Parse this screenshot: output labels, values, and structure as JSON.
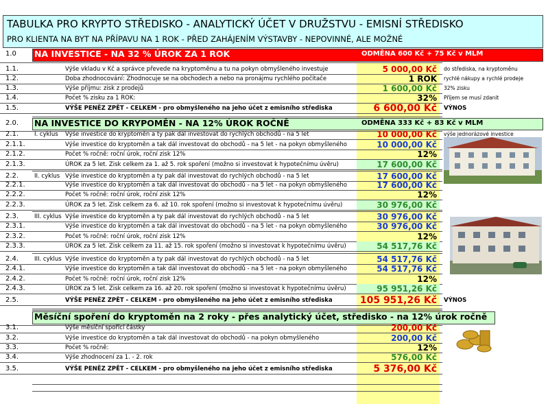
{
  "header": {
    "title": "TABULKA PRO KRYPTO STŘEDISKO - ANALYTICKÝ ÚČET V DRUŽSTVU - EMISNÍ STŘEDISKO",
    "subtitle": "PRO KLIENTA NA BYT NA PŘÍPAVU NA 1 ROK - PŘED ZAHÁJENÍM VÝSTAVBY - NEPOVINNÉ, ALE MOŽNÉ"
  },
  "sections": [
    {
      "number": "1.0",
      "heading": "NA INVESTICE - NA 32 % ÚROK ZA 1 ROK",
      "reward": "ODMĚNA 600 Kč + 75 Kč v MLM",
      "rows": [
        {
          "number": "1.1.",
          "label": "Výše vkladu v Kč a správce převede na kryptoměnu a tu na pokyn obmyšleného investuje",
          "value": "5 000,00 Kč",
          "note": "do střediska, na kryptoměnu"
        },
        {
          "number": "1.2.",
          "label": "Doba zhodnocování: Zhodnocuje se na obchodech a nebo na pronájmu rychlého počítače",
          "value": "1 ROK",
          "note": "rychlé nákupy a rychlé prodeje"
        },
        {
          "number": "1.3.",
          "label": "Výše příjmu: zisk z prodejů",
          "value": "1 600,00 Kč",
          "note": "32% zisku"
        },
        {
          "number": "1.4.",
          "label": "Počet % zisku za 1 ROK:",
          "value": "32%",
          "note": "Příjem se musí zdanit"
        },
        {
          "number": "1.5.",
          "label": "VÝŠE PENĚZ ZPĚT - CELKEM  - pro obmyšleného na jeho účet z emisního střediska",
          "value": "6 600,00 Kč",
          "note": "VÝNOS"
        }
      ]
    },
    {
      "number": "2.0.",
      "heading": "NA INVESTICE DO KRYPOMĚN - NA 12% ÚROK ROČNĚ",
      "reward": "ODMĚNA 333 Kč + 83 Kč v MLM",
      "rows": [
        {
          "number": "2.1.",
          "cycle": "I. cyklus",
          "label": "Výše investice do kryptoměn a ty pak dál investovat do rychlých obchodů - na 5 let",
          "value": "10 000,00 Kč",
          "note": "výše jednorázové investice"
        },
        {
          "number": "2.1.1.",
          "label": "Výše investice do kryptoměn a tak dál investovat do obchodů - na 5 let - na pokyn obmyšleného",
          "value": "10 000,00 Kč"
        },
        {
          "number": "2.1.2.",
          "label": "Počet % ročně: roční úrok, roční zisk  12%",
          "value": "12%"
        },
        {
          "number": "2.1.3.",
          "label": "ÚROK za 5 let. Zisk celkem za 1. až 5. rok spoření (možno si investovat k hypotečnímu úvěru)",
          "value": "17 600,00 Kč"
        },
        {
          "number": "2.2.",
          "cycle": "II. cyklus",
          "label": "Výše investice do kryptoměn a ty pak dál investovat do rychlých obchodů - na 5 let",
          "value": "17 600,00 Kč"
        },
        {
          "number": "2.2.1.",
          "label": "Výše investice do kryptoměn a tak dál investovat do obchodů - na 5 let - na pokyn obmyšleného",
          "value": "17 600,00 Kč"
        },
        {
          "number": "2.2.2.",
          "label": "Počet % ročně: roční úrok, roční zisk  12%",
          "value": "12%"
        },
        {
          "number": "2.2.3.",
          "label": "ÚROK za 5 let. Zisk celkem za 6. až 10. rok spoření (možno si investovat k hypotečnímu úvěru)",
          "value": "30 976,00 Kč"
        },
        {
          "number": "2.3.",
          "cycle": "III. cyklus",
          "label": "Výše investice do kryptoměn a ty pak dál investovat do rychlých obchodů - na 5 let",
          "value": "30 976,00 Kč"
        },
        {
          "number": "2.3.1.",
          "label": "Výše investice do kryptoměn a tak dál investovat do obchodů - na 5 let - na pokyn obmyšleného",
          "value": "30 976,00 Kč"
        },
        {
          "number": "2.3.2.",
          "label": "Počet % ročně: roční úrok, roční zisk  12%",
          "value": "12%"
        },
        {
          "number": "2.3.3.",
          "label": "ÚROK za 5 let. Zisk celkem za 11. až 15. rok spoření (možno si investovat k hypotečnímu úvěru)",
          "value": "54 517,76 Kč"
        },
        {
          "number": "2.4.",
          "cycle": "III. cyklus",
          "label": "Výše investice do kryptoměn a ty pak dál investovat do rychlých obchodů - na 5 let",
          "value": "54 517,76 Kč"
        },
        {
          "number": "2.4.1.",
          "label": "Výše investice do kryptoměn a tak dál investovat do obchodů - na 5 let - na pokyn obmyšleného",
          "value": "54 517,76 Kč"
        },
        {
          "number": "2.4.2.",
          "label": "Počet % ročně: roční úrok, roční zisk  12%",
          "value": "12%"
        },
        {
          "number": "2.4.3.",
          "label": "ÚROK za 5 let. Zisk celkem za 16. až 20. rok spoření (možno si investovat k hypotečnímu úvěru)",
          "value": "95 951,26 Kč"
        },
        {
          "number": "2.5.",
          "label": "VÝŠE PENĚZ ZPĚT - CELKEM  - pro obmyšleného na jeho účet z emisního střediska",
          "value": "105 951,26 Kč",
          "note": "VÝNOS"
        }
      ]
    },
    {
      "heading": "Měsíční spoření do kryptoměn na 2 roky - přes analytický účet, středisko - na 12%  úrok ročně",
      "rows": [
        {
          "number": "3.1.",
          "label": "Výše měsíční spořící částky",
          "value": "200,00 Kč"
        },
        {
          "number": "3.2.",
          "label": "Výše investice do kryptoměn a tak dál investovat do obchodů - na pokyn obmyšleného",
          "value": "200,00 Kč"
        },
        {
          "number": "3.3.",
          "label": "Počet % ročně:",
          "value": "12%"
        },
        {
          "number": "3.4.",
          "label": "Výše zhodnocení za 1. - 2.  rok",
          "value": "576,00 Kč"
        },
        {
          "number": "3.5.",
          "label": "VÝŠE PENĚZ ZPĚT - CELKEM  - pro obmyšleného na jeho účet z emisního střediska",
          "value": "5 376,00 Kč"
        }
      ]
    }
  ]
}
